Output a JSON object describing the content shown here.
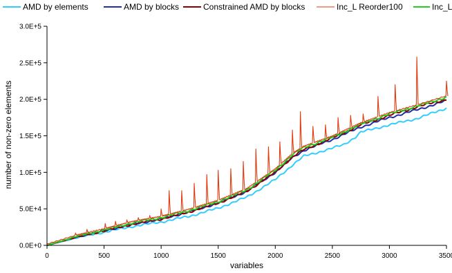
{
  "chart_data": {
    "type": "line",
    "title": "",
    "xlabel": "variables",
    "ylabel": "number of non-zero elements",
    "xlim": [
      0,
      3500
    ],
    "ylim": [
      0,
      300000
    ],
    "x_ticks": [
      0,
      500,
      1000,
      1500,
      2000,
      2500,
      3000,
      3500
    ],
    "y_ticks": [
      "0.0E+0",
      "5.0E+4",
      "1.0E+5",
      "1.5E+5",
      "2.0E+5",
      "2.5E+5",
      "3.0E+5"
    ],
    "y_tick_values": [
      0,
      50000,
      100000,
      150000,
      200000,
      250000,
      300000
    ],
    "grid": false,
    "legend_position": "top",
    "series": [
      {
        "name": "AMD by elements",
        "color": "#33CCFF",
        "x": [
          0,
          250,
          500,
          750,
          1000,
          1250,
          1500,
          1750,
          2000,
          2150,
          2250,
          2500,
          2600,
          2650,
          2700,
          2750,
          3000,
          3250,
          3500
        ],
        "y": [
          0,
          10000,
          18000,
          26000,
          32000,
          40000,
          51000,
          66000,
          90000,
          110000,
          122000,
          133000,
          138000,
          143000,
          148000,
          155000,
          165000,
          174000,
          188000
        ]
      },
      {
        "name": "AMD by blocks",
        "color": "#1F2F9F",
        "x": [
          0,
          250,
          500,
          750,
          1000,
          1250,
          1500,
          1750,
          2000,
          2150,
          2250,
          2500,
          2750,
          3000,
          3250,
          3500
        ],
        "y": [
          0,
          11000,
          20000,
          29000,
          36000,
          46000,
          58000,
          74000,
          100000,
          120000,
          130000,
          145000,
          162000,
          175000,
          186000,
          198000
        ]
      },
      {
        "name": "Constrained AMD by blocks",
        "color": "#8B0000",
        "x": [
          0,
          250,
          500,
          750,
          1000,
          1250,
          1500,
          1750,
          2000,
          2150,
          2250,
          2500,
          2750,
          3000,
          3250,
          3500
        ],
        "y": [
          0,
          11000,
          20000,
          29000,
          36000,
          46000,
          58000,
          74000,
          100000,
          121000,
          131000,
          147000,
          165000,
          178000,
          190000,
          200000
        ]
      },
      {
        "name": "Inc_L Reorder100",
        "color": "#E03A0E",
        "peaks_x": [
          250,
          350,
          510,
          600,
          700,
          800,
          900,
          1000,
          1070,
          1180,
          1290,
          1400,
          1500,
          1610,
          1720,
          1830,
          1940,
          2040,
          2150,
          2220,
          2330,
          2440,
          2550,
          2660,
          2770,
          2900,
          3050,
          3240,
          3500
        ],
        "peaks_y": [
          17000,
          22000,
          30000,
          33000,
          35000,
          38000,
          41000,
          50000,
          75000,
          75000,
          85000,
          97000,
          103000,
          105000,
          115000,
          132000,
          135000,
          142000,
          158000,
          183000,
          163000,
          165000,
          175000,
          178000,
          180000,
          204000,
          220000,
          258000,
          225000
        ]
      },
      {
        "name": "Inc_L",
        "color": "#22CC22",
        "x": [
          0,
          250,
          500,
          750,
          1000,
          1250,
          1500,
          1750,
          2000,
          2150,
          2250,
          2500,
          2750,
          3000,
          3250,
          3500
        ],
        "y": [
          0,
          12000,
          21000,
          31000,
          38000,
          48000,
          60000,
          76000,
          103000,
          124000,
          134000,
          148000,
          166000,
          180000,
          191000,
          203000
        ]
      }
    ]
  }
}
